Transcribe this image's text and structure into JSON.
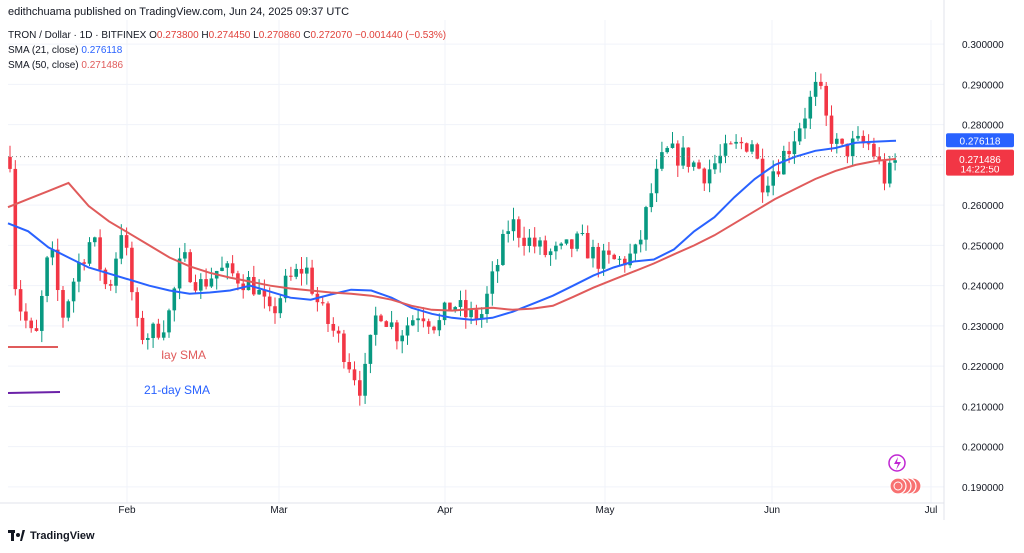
{
  "header": {
    "publisher": "edithchuama published on TradingView.com, Jun 24, 2025 09:37 UTC"
  },
  "symbol_line": {
    "name": "TRON / Dollar · 1D · BITFINEX",
    "o_label": "O",
    "o": "0.273800",
    "h_label": "H",
    "h": "0.274450",
    "l_label": "L",
    "l": "0.270860",
    "c_label": "C",
    "c": "0.272070",
    "change": "−0.001440 (−0.53%)"
  },
  "legend": {
    "sma21_label": "SMA (21, close)",
    "sma21_value": "0.276118",
    "sma50_label": "SMA (50, close)",
    "sma50_value": "0.271486"
  },
  "footer": {
    "brand": "TradingView"
  },
  "colors": {
    "up": "#089981",
    "down": "#f23645",
    "sma21": "#2962ff",
    "sma50": "#e05b5b",
    "annot": "#6b21a8"
  },
  "chart_data": {
    "type": "candlestick",
    "title": "TRON / Dollar · 1D · BITFINEX",
    "ylim": [
      0.186,
      0.306
    ],
    "y_ticks": [
      "0.300000",
      "0.290000",
      "0.280000",
      "0.270000",
      "0.260000",
      "0.250000",
      "0.240000",
      "0.230000",
      "0.220000",
      "0.210000",
      "0.200000",
      "0.190000"
    ],
    "x_ticks": [
      "Feb",
      "Mar",
      "Apr",
      "May",
      "Jun",
      "Jul"
    ],
    "last_price": "0.272070",
    "countdown": "14:22:50",
    "sma21_tag": "0.276118",
    "sma50_tag": "0.271486",
    "annotations": [
      "21-day SMA",
      "50-day SMA"
    ],
    "series": [
      {
        "name": "SMA (21, close)",
        "values": [
          0.2555,
          0.2535,
          0.2495,
          0.247,
          0.2445,
          0.243,
          0.2415,
          0.24,
          0.2388,
          0.238,
          0.2383,
          0.2388,
          0.24,
          0.2385,
          0.237,
          0.2365,
          0.2378,
          0.239,
          0.2388,
          0.237,
          0.2345,
          0.233,
          0.232,
          0.2315,
          0.232,
          0.2335,
          0.2355,
          0.2375,
          0.24,
          0.2425,
          0.2445,
          0.246,
          0.2465,
          0.249,
          0.2535,
          0.257,
          0.262,
          0.2665,
          0.27,
          0.272,
          0.2735,
          0.2742,
          0.2755,
          0.2758,
          0.276
        ]
      },
      {
        "name": "SMA (50, close)",
        "values": [
          0.2595,
          0.2615,
          0.2635,
          0.2655,
          0.2598,
          0.256,
          0.253,
          0.25,
          0.247,
          0.2448,
          0.2432,
          0.242,
          0.241,
          0.24,
          0.2393,
          0.2388,
          0.2383,
          0.238,
          0.2375,
          0.2365,
          0.235,
          0.234,
          0.2338,
          0.2342,
          0.2345,
          0.234,
          0.2343,
          0.235,
          0.2372,
          0.2395,
          0.2415,
          0.2435,
          0.2455,
          0.2478,
          0.25,
          0.2525,
          0.2555,
          0.2585,
          0.2615,
          0.264,
          0.2665,
          0.2685,
          0.27,
          0.271,
          0.2715
        ]
      }
    ]
  }
}
